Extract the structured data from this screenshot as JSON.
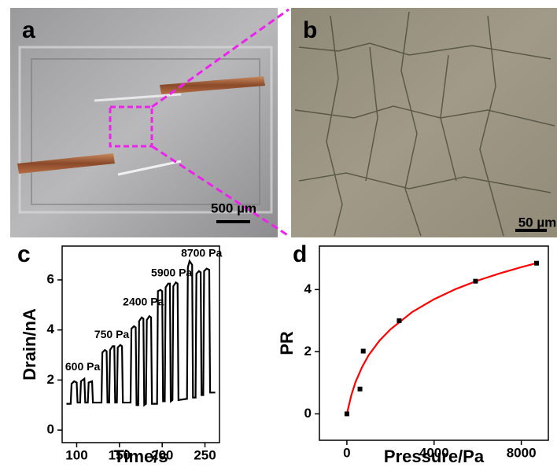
{
  "photos": [
    {
      "label": "a",
      "scale_bar": "500 µm"
    },
    {
      "label": "b",
      "scale_bar": "50 µm"
    }
  ],
  "chart_data": [
    {
      "type": "line",
      "label": "c",
      "x_label": "Time/s",
      "y_label": "Drain/nA",
      "color": "#000000",
      "x": [
        88,
        93,
        94,
        97,
        100,
        101,
        104,
        105,
        109,
        110,
        113,
        114,
        118,
        119,
        129,
        130,
        133,
        135,
        136,
        138,
        139,
        142,
        144,
        145,
        147,
        148,
        151,
        153,
        154,
        163,
        164,
        167,
        169,
        170,
        172,
        173,
        176,
        178,
        179,
        181,
        182,
        185,
        187,
        188,
        194,
        195,
        198,
        200,
        201,
        203,
        204,
        207,
        209,
        210,
        212,
        213,
        216,
        218,
        219,
        229,
        230,
        232,
        235,
        236,
        239,
        240,
        243,
        245,
        246,
        248,
        249,
        252,
        255,
        256,
        262
      ],
      "values": [
        1.05,
        1.05,
        1.85,
        1.95,
        1.9,
        1.1,
        1.1,
        1.95,
        2.05,
        1.1,
        1.1,
        1.9,
        1.95,
        1.1,
        1.1,
        3.1,
        3.2,
        3.15,
        1.1,
        1.1,
        3.2,
        3.35,
        3.35,
        1.1,
        1.1,
        3.3,
        3.4,
        3.35,
        1.1,
        1.1,
        4.05,
        4.15,
        4.1,
        1.0,
        1.0,
        4.35,
        4.5,
        4.45,
        1.0,
        1.05,
        4.4,
        4.55,
        4.5,
        1.05,
        1.05,
        5.55,
        5.6,
        5.55,
        1.15,
        1.15,
        5.7,
        5.85,
        5.85,
        1.15,
        1.2,
        5.75,
        5.9,
        5.85,
        1.2,
        1.25,
        6.5,
        6.75,
        6.6,
        1.3,
        1.3,
        6.25,
        6.35,
        6.3,
        1.4,
        1.4,
        6.35,
        6.45,
        6.4,
        1.5,
        1.5
      ],
      "xlim": [
        83,
        267
      ],
      "ylim": [
        -0.5,
        7.35
      ],
      "xticks": [
        100,
        150,
        200,
        250
      ],
      "yticks": [
        0,
        2,
        4,
        6
      ],
      "annotations": [
        {
          "text": "600 Pa",
          "x": 107,
          "y": 2.5
        },
        {
          "text": "750 Pa",
          "x": 141,
          "y": 3.8
        },
        {
          "text": "2400 Pa",
          "x": 178,
          "y": 5.1
        },
        {
          "text": "5900 Pa",
          "x": 211,
          "y": 6.25
        },
        {
          "text": "8700 Pa",
          "x": 246,
          "y": 7.05
        }
      ]
    },
    {
      "type": "scatter",
      "label": "d",
      "x_label": "Pressure/Pa",
      "y_label": "PR",
      "color": "#000000",
      "x": [
        0,
        600,
        750,
        2400,
        5900,
        8700
      ],
      "values": [
        0,
        0.8,
        2.02,
        3.0,
        4.27,
        4.85
      ],
      "fit": {
        "color": "#ff0000",
        "x": [
          0,
          200,
          400,
          700,
          1000,
          1500,
          2000,
          3000,
          4000,
          5000,
          6000,
          7000,
          8000,
          8700
        ],
        "values": [
          0,
          0.59,
          1.03,
          1.51,
          1.89,
          2.36,
          2.72,
          3.28,
          3.69,
          4.02,
          4.29,
          4.52,
          4.72,
          4.85
        ]
      },
      "xlim": [
        -1260,
        9240
      ],
      "ylim": [
        -0.85,
        5.4
      ],
      "xticks": [
        0,
        4000,
        8000
      ],
      "yticks": [
        0,
        2,
        4
      ]
    }
  ]
}
